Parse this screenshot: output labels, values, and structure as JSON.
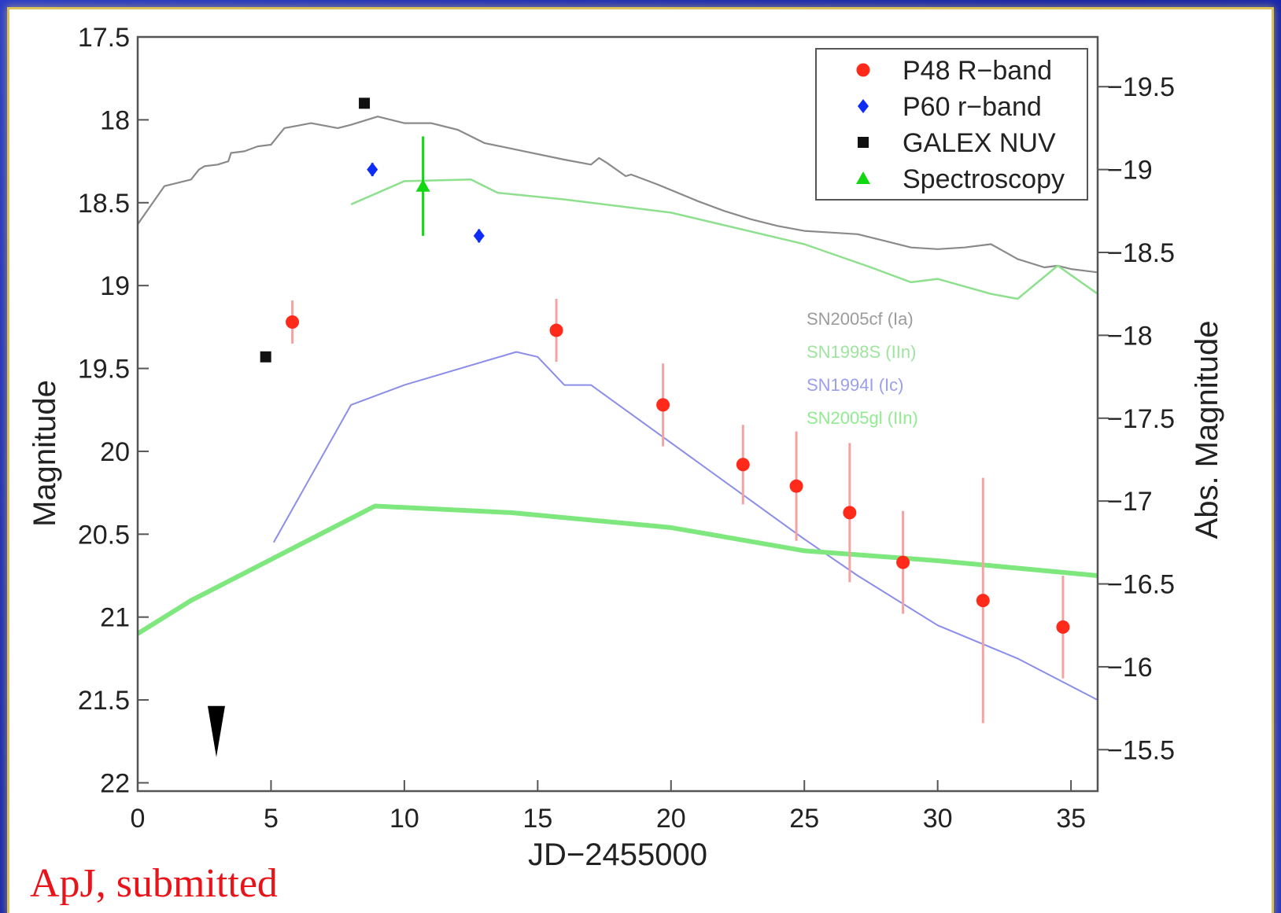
{
  "caption": "ApJ, submitted",
  "chart_data": {
    "type": "scatter",
    "xlabel": "JD−2455000",
    "ylabel": "Magnitude",
    "y2label": "Abs. Magnitude",
    "xlim": [
      0,
      36
    ],
    "ylim": [
      22.05,
      17.5
    ],
    "y2lim": [
      -15.25,
      -19.8
    ],
    "x_ticks": [
      "0",
      "5",
      "10",
      "15",
      "20",
      "25",
      "30",
      "35"
    ],
    "y_ticks": [
      "17.5",
      "18",
      "18.5",
      "19",
      "19.5",
      "20",
      "20.5",
      "21",
      "21.5",
      "22"
    ],
    "y2_ticks": [
      "−19.5",
      "−19",
      "−18.5",
      "−18",
      "−17.5",
      "−17",
      "−16.5",
      "−16",
      "−15.5"
    ],
    "legend_position": "top-right",
    "series": [
      {
        "name": "P48 R−band",
        "marker": "circle",
        "color": "#ff2a1a",
        "err_color": "#f4a3a3",
        "points": [
          {
            "x": 5.8,
            "y": 19.22,
            "err": 0.13
          },
          {
            "x": 15.7,
            "y": 19.27,
            "err": 0.19
          },
          {
            "x": 19.7,
            "y": 19.72,
            "err": 0.25
          },
          {
            "x": 22.7,
            "y": 20.08,
            "err": 0.24
          },
          {
            "x": 24.7,
            "y": 20.21,
            "err": 0.33
          },
          {
            "x": 26.7,
            "y": 20.37,
            "err": 0.42
          },
          {
            "x": 28.7,
            "y": 20.67,
            "err": 0.31
          },
          {
            "x": 31.7,
            "y": 20.9,
            "err": 0.74
          },
          {
            "x": 34.7,
            "y": 21.06,
            "err": 0.31
          }
        ]
      },
      {
        "name": "P60 r−band",
        "marker": "diamond",
        "color": "#0f2cf5",
        "err_color": "#0f2cf5",
        "points": [
          {
            "x": 8.8,
            "y": 18.3,
            "err": 0.04
          },
          {
            "x": 12.8,
            "y": 18.7,
            "err": 0.04
          }
        ]
      },
      {
        "name": "GALEX NUV",
        "marker": "square",
        "color": "#111111",
        "err_color": "#111111",
        "points": [
          {
            "x": 4.8,
            "y": 19.43,
            "err": 0
          },
          {
            "x": 8.5,
            "y": 17.9,
            "err": 0
          }
        ]
      },
      {
        "name": "Spectroscopy",
        "marker": "triangle",
        "color": "#12d812",
        "err_color": "#12d812",
        "points": [
          {
            "x": 10.7,
            "y": 18.4,
            "err": 0.3
          }
        ]
      }
    ],
    "upper_limit": {
      "x": 2.95,
      "y": 21.75
    },
    "template_curves": [
      {
        "label": "SN2005cf (Ia)",
        "color": "#8a8a8a",
        "width": 2.2,
        "x": [
          0,
          1,
          2,
          2.3,
          2.5,
          3,
          3.4,
          3.5,
          4,
          4.5,
          5,
          5.2,
          5.5,
          6.5,
          7.5,
          8,
          9,
          10,
          11,
          12,
          13,
          14.5,
          16,
          17,
          17.3,
          17.6,
          18.3,
          18.5,
          19.5,
          21,
          22,
          23,
          24,
          25,
          26,
          27,
          28,
          29,
          30,
          31,
          32,
          33,
          34,
          34.5,
          35,
          36
        ],
        "y": [
          18.63,
          18.4,
          18.36,
          18.3,
          18.28,
          18.27,
          18.25,
          18.2,
          18.19,
          18.16,
          18.15,
          18.11,
          18.05,
          18.02,
          18.05,
          18.03,
          17.98,
          18.02,
          18.02,
          18.06,
          18.14,
          18.19,
          18.24,
          18.27,
          18.23,
          18.26,
          18.34,
          18.33,
          18.39,
          18.49,
          18.55,
          18.6,
          18.64,
          18.67,
          18.68,
          18.69,
          18.73,
          18.77,
          18.78,
          18.77,
          18.75,
          18.84,
          18.89,
          18.88,
          18.9,
          18.92
        ]
      },
      {
        "label": "SN1998S (IIn)",
        "color": "#8ee08e",
        "width": 2.5,
        "x": [
          8,
          10,
          12.5,
          13.5,
          16,
          20,
          25,
          27.5,
          29,
          30,
          32,
          33,
          34.5,
          36
        ],
        "y": [
          18.51,
          18.37,
          18.36,
          18.44,
          18.48,
          18.56,
          18.75,
          18.89,
          18.98,
          18.96,
          19.05,
          19.08,
          18.88,
          19.05
        ]
      },
      {
        "label": "SN1994I (Ic)",
        "color": "#8a8ee8",
        "width": 2,
        "x": [
          5.1,
          8,
          10,
          14.2,
          15,
          16,
          17,
          25,
          27,
          30,
          33,
          36
        ],
        "y": [
          20.55,
          19.72,
          19.6,
          19.4,
          19.43,
          19.6,
          19.6,
          20.53,
          20.75,
          21.05,
          21.25,
          21.5
        ]
      },
      {
        "label": "SN2005gl (IIn)",
        "color": "#7ee87e",
        "width": 6,
        "x": [
          0,
          2,
          8.9,
          14,
          20,
          25,
          30,
          36
        ],
        "y": [
          21.1,
          20.9,
          20.33,
          20.37,
          20.46,
          20.6,
          20.66,
          20.75
        ]
      }
    ]
  }
}
